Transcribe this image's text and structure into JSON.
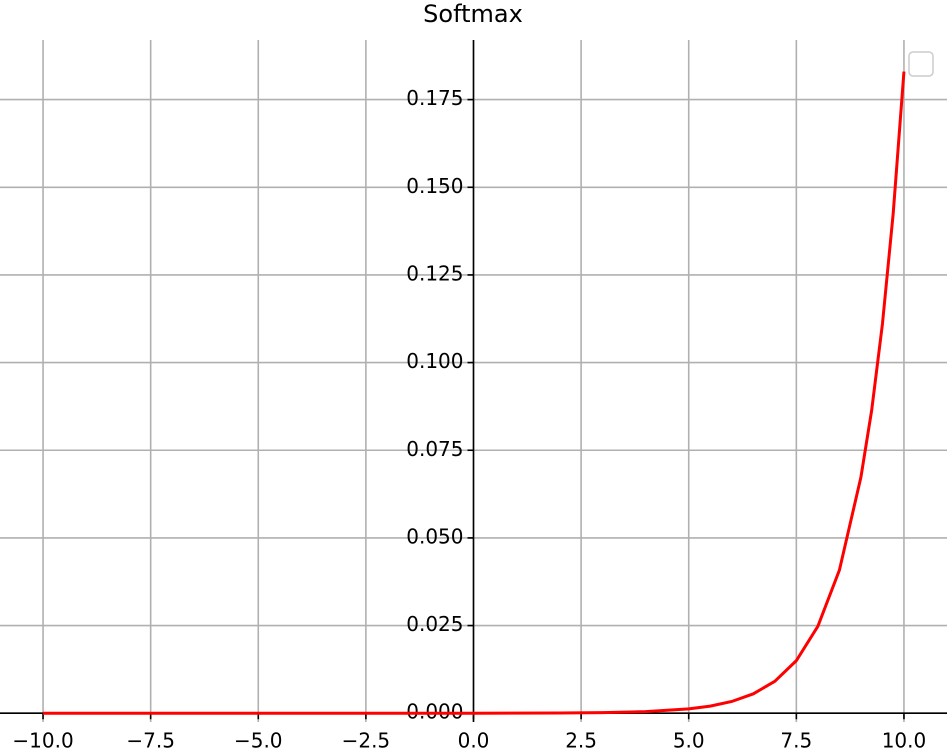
{
  "chart_data": {
    "type": "line",
    "title": "Softmax",
    "x": [
      -10,
      -5,
      0,
      2,
      3,
      4,
      5,
      5.5,
      6,
      6.5,
      7,
      7.5,
      8,
      8.5,
      9,
      9.25,
      9.5,
      9.75,
      10
    ],
    "values": [
      0,
      0,
      8.3e-06,
      6.14e-05,
      0.000167,
      0.000454,
      0.00123,
      0.00203,
      0.00335,
      0.00553,
      0.00911,
      0.015,
      0.0248,
      0.0408,
      0.0673,
      0.0864,
      0.111,
      0.1425,
      0.183
    ],
    "color": "#ff0000",
    "xlim": [
      -11,
      11
    ],
    "ylim": [
      -0.0025,
      0.192
    ],
    "xticks": [
      {
        "value": -10,
        "label": "−10.0"
      },
      {
        "value": -7.5,
        "label": "−7.5"
      },
      {
        "value": -5,
        "label": "−5.0"
      },
      {
        "value": -2.5,
        "label": "−2.5"
      },
      {
        "value": 0,
        "label": "0.0"
      },
      {
        "value": 2.5,
        "label": "2.5"
      },
      {
        "value": 5,
        "label": "5.0"
      },
      {
        "value": 7.5,
        "label": "7.5"
      },
      {
        "value": 10,
        "label": "10.0"
      }
    ],
    "yticks": [
      {
        "value": 0,
        "label": "0.000"
      },
      {
        "value": 0.025,
        "label": "0.025"
      },
      {
        "value": 0.05,
        "label": "0.050"
      },
      {
        "value": 0.075,
        "label": "0.075"
      },
      {
        "value": 0.1,
        "label": "0.100"
      },
      {
        "value": 0.125,
        "label": "0.125"
      },
      {
        "value": 0.15,
        "label": "0.150"
      },
      {
        "value": 0.175,
        "label": "0.175"
      }
    ],
    "grid": true
  }
}
